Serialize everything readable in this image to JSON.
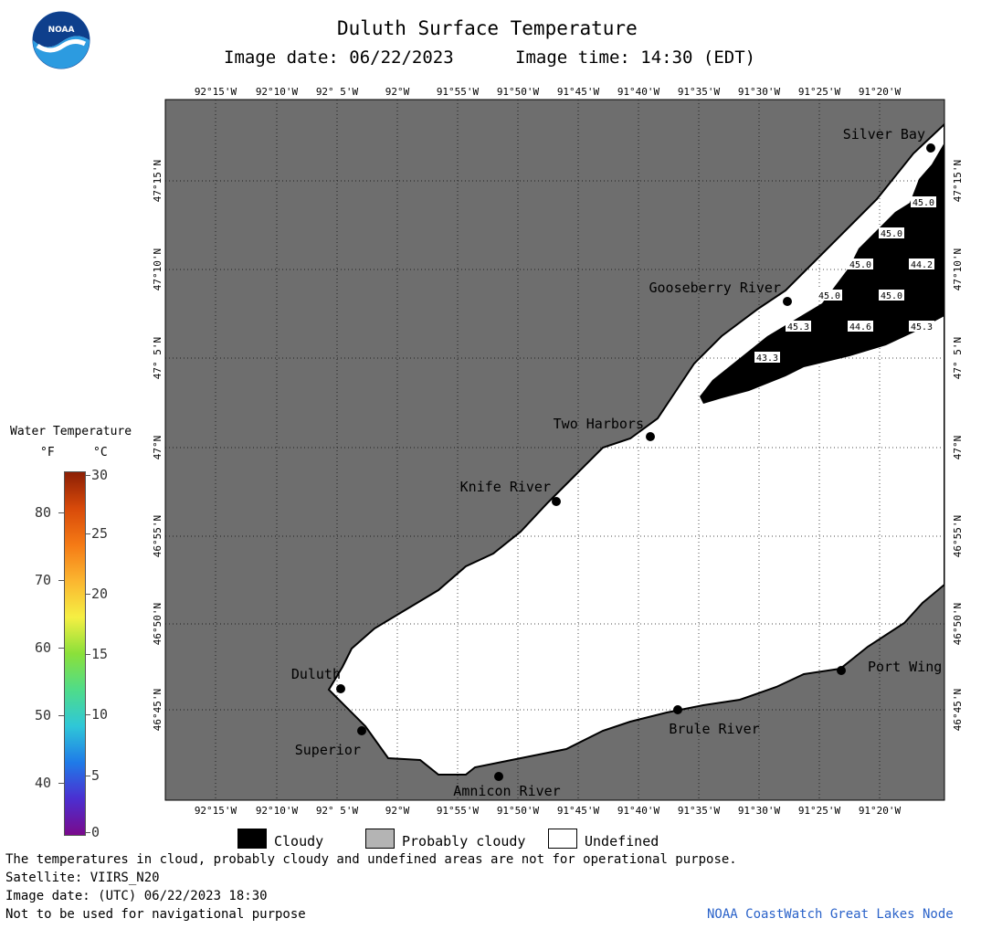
{
  "header": {
    "title": "Duluth Surface Temperature",
    "image_date": "Image date: 06/22/2023",
    "image_time": "Image time: 14:30 (EDT)"
  },
  "logo": {
    "text": "NOAA",
    "icon": "noaa-logo-icon"
  },
  "colorbar": {
    "title": "Water Temperature",
    "unit_f": "°F",
    "unit_c": "°C",
    "f_ticks": [
      "80",
      "70",
      "60",
      "50",
      "40"
    ],
    "c_ticks": [
      "30",
      "25",
      "20",
      "15",
      "10",
      "5",
      "0"
    ],
    "colors": [
      "#7a0a8c",
      "#4b2fd1",
      "#1f7be8",
      "#2fc7d8",
      "#4fdc8a",
      "#8be03a",
      "#f5ef43",
      "#fbb630",
      "#f57a15",
      "#d84a0a",
      "#8c1f05"
    ]
  },
  "map": {
    "lon_labels": [
      "92°15'W",
      "92°10'W",
      "92° 5'W",
      "92°W",
      "91°55'W",
      "91°50'W",
      "91°45'W",
      "91°40'W",
      "91°35'W",
      "91°30'W",
      "91°25'W",
      "91°20'W"
    ],
    "lat_labels": [
      "47°15'N",
      "47°10'N",
      "47° 5'N",
      "47°N",
      "46°55'N",
      "46°50'N",
      "46°45'N"
    ],
    "places": [
      {
        "name": "Silver Bay"
      },
      {
        "name": "Gooseberry River"
      },
      {
        "name": "Two Harbors"
      },
      {
        "name": "Knife River"
      },
      {
        "name": "Duluth"
      },
      {
        "name": "Superior"
      },
      {
        "name": "Amnicon River"
      },
      {
        "name": "Brule River"
      },
      {
        "name": "Port Wing"
      }
    ],
    "temps": [
      "45.0",
      "45.0",
      "45.0",
      "44.2",
      "45.0",
      "45.0",
      "45.3",
      "44.6",
      "45.3",
      "43.3"
    ],
    "colors": {
      "land": "#6e6e6e",
      "cloud": "#000000",
      "undefined": "#ffffff",
      "grid": "#000000"
    }
  },
  "legend": {
    "cloudy": "Cloudy",
    "probably_cloudy": "Probably cloudy",
    "undefined": "Undefined",
    "colors": {
      "cloudy": "#000000",
      "probably_cloudy": "#b4b4b4",
      "undefined": "#ffffff"
    }
  },
  "footer": {
    "line1": "The temperatures in cloud, probably cloudy and undefined areas are not for operational purpose.",
    "line2": "Satellite: VIIRS_N20",
    "line3": "Image date: (UTC) 06/22/2023  18:30",
    "line4": "Not to be used for navigational purpose",
    "credit": "NOAA CoastWatch Great Lakes Node"
  }
}
